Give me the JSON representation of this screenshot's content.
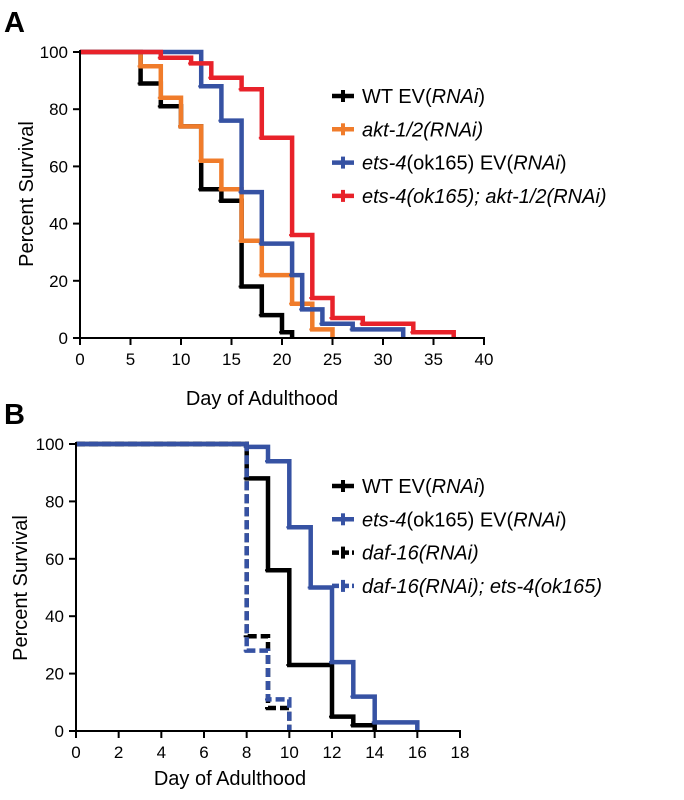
{
  "chart_data": [
    {
      "panel": "A",
      "type": "line",
      "step": true,
      "xlabel": "Day of Adulthood",
      "ylabel": "Percent Survival",
      "xlim": [
        0,
        40
      ],
      "ylim": [
        0,
        100
      ],
      "x_ticks": [
        "0",
        "5",
        "10",
        "15",
        "20",
        "25",
        "30",
        "35",
        "40"
      ],
      "y_ticks": [
        "0",
        "20",
        "40",
        "60",
        "80",
        "100"
      ],
      "grid": false,
      "legend_position": "right",
      "series": [
        {
          "legend_parts": [
            {
              "text": "WT EV(",
              "italic": false
            },
            {
              "text": "RNAi",
              "italic": true
            },
            {
              "text": ")",
              "italic": false
            }
          ],
          "color": "#000000",
          "dash": "solid",
          "points": [
            [
              0,
              100
            ],
            [
              6,
              100
            ],
            [
              6,
              89
            ],
            [
              8,
              89
            ],
            [
              8,
              81
            ],
            [
              10,
              81
            ],
            [
              10,
              74
            ],
            [
              12,
              74
            ],
            [
              12,
              52
            ],
            [
              14,
              52
            ],
            [
              14,
              48
            ],
            [
              16,
              48
            ],
            [
              16,
              18
            ],
            [
              18,
              18
            ],
            [
              18,
              8
            ],
            [
              20,
              8
            ],
            [
              20,
              2
            ],
            [
              21,
              2
            ],
            [
              21,
              0
            ]
          ]
        },
        {
          "legend_parts": [
            {
              "text": "akt-1/2(RNAi)",
              "italic": true
            }
          ],
          "color": "#f07c2b",
          "dash": "solid",
          "points": [
            [
              0,
              100
            ],
            [
              6,
              100
            ],
            [
              6,
              95
            ],
            [
              8,
              95
            ],
            [
              8,
              84
            ],
            [
              10,
              84
            ],
            [
              10,
              74
            ],
            [
              12,
              74
            ],
            [
              12,
              62
            ],
            [
              14,
              62
            ],
            [
              14,
              52
            ],
            [
              16,
              52
            ],
            [
              16,
              34
            ],
            [
              18,
              34
            ],
            [
              18,
              22
            ],
            [
              21,
              22
            ],
            [
              21,
              12
            ],
            [
              23,
              12
            ],
            [
              23,
              3
            ],
            [
              25,
              3
            ],
            [
              25,
              0
            ]
          ]
        },
        {
          "legend_parts": [
            {
              "text": "ets-4",
              "italic": true
            },
            {
              "text": "(ok165) EV(",
              "italic": false
            },
            {
              "text": "RNAi",
              "italic": true
            },
            {
              "text": ")",
              "italic": false
            }
          ],
          "color": "#3652a3",
          "dash": "solid",
          "points": [
            [
              0,
              100
            ],
            [
              10,
              100
            ],
            [
              12,
              100
            ],
            [
              12,
              88
            ],
            [
              14,
              88
            ],
            [
              14,
              76
            ],
            [
              16,
              76
            ],
            [
              16,
              51
            ],
            [
              18,
              51
            ],
            [
              18,
              33
            ],
            [
              21,
              33
            ],
            [
              21,
              22
            ],
            [
              22,
              22
            ],
            [
              22,
              10
            ],
            [
              24,
              10
            ],
            [
              24,
              5
            ],
            [
              27,
              5
            ],
            [
              27,
              3
            ],
            [
              32,
              3
            ],
            [
              32,
              0
            ]
          ]
        },
        {
          "legend_parts": [
            {
              "text": "ets-4(ok165); akt-1/2(RNAi)",
              "italic": true
            }
          ],
          "color": "#e8222a",
          "dash": "solid",
          "points": [
            [
              0,
              100
            ],
            [
              8,
              100
            ],
            [
              8,
              98
            ],
            [
              11,
              98
            ],
            [
              11,
              96
            ],
            [
              13,
              96
            ],
            [
              13,
              91
            ],
            [
              16,
              91
            ],
            [
              16,
              87
            ],
            [
              18,
              87
            ],
            [
              18,
              70
            ],
            [
              21,
              70
            ],
            [
              21,
              36
            ],
            [
              23,
              36
            ],
            [
              23,
              14
            ],
            [
              25,
              14
            ],
            [
              25,
              7
            ],
            [
              28,
              7
            ],
            [
              28,
              5
            ],
            [
              33,
              5
            ],
            [
              33,
              2
            ],
            [
              37,
              2
            ],
            [
              37,
              0
            ]
          ]
        }
      ]
    },
    {
      "panel": "B",
      "type": "line",
      "step": true,
      "xlabel": "Day of Adulthood",
      "ylabel": "Percent Survival",
      "xlim": [
        0,
        18
      ],
      "ylim": [
        0,
        100
      ],
      "x_ticks": [
        "0",
        "2",
        "4",
        "6",
        "8",
        "10",
        "12",
        "14",
        "16",
        "18"
      ],
      "y_ticks": [
        "0",
        "20",
        "40",
        "60",
        "80",
        "100"
      ],
      "grid": false,
      "legend_position": "right",
      "series": [
        {
          "legend_parts": [
            {
              "text": "WT EV(",
              "italic": false
            },
            {
              "text": "RNAi",
              "italic": true
            },
            {
              "text": ")",
              "italic": false
            }
          ],
          "color": "#000000",
          "dash": "solid",
          "points": [
            [
              0,
              100
            ],
            [
              8,
              100
            ],
            [
              8,
              88
            ],
            [
              9,
              88
            ],
            [
              9,
              56
            ],
            [
              10,
              56
            ],
            [
              10,
              23
            ],
            [
              12,
              23
            ],
            [
              12,
              5
            ],
            [
              13,
              5
            ],
            [
              13,
              2
            ],
            [
              14,
              2
            ],
            [
              14,
              0
            ]
          ]
        },
        {
          "legend_parts": [
            {
              "text": "ets-4",
              "italic": true
            },
            {
              "text": "(ok165) EV(",
              "italic": false
            },
            {
              "text": "RNAi",
              "italic": true
            },
            {
              "text": ")",
              "italic": false
            }
          ],
          "color": "#3652a3",
          "dash": "solid",
          "points": [
            [
              0,
              100
            ],
            [
              8,
              100
            ],
            [
              8,
              99
            ],
            [
              9,
              99
            ],
            [
              9,
              94
            ],
            [
              10,
              94
            ],
            [
              10,
              71
            ],
            [
              11,
              71
            ],
            [
              11,
              50
            ],
            [
              12,
              50
            ],
            [
              12,
              24
            ],
            [
              13,
              24
            ],
            [
              13,
              12
            ],
            [
              14,
              12
            ],
            [
              14,
              3
            ],
            [
              16,
              3
            ],
            [
              16,
              0
            ]
          ]
        },
        {
          "legend_parts": [
            {
              "text": "daf-16(RNAi)",
              "italic": true
            }
          ],
          "color": "#000000",
          "dash": "dashed",
          "points": [
            [
              0,
              100
            ],
            [
              8,
              100
            ],
            [
              8,
              33
            ],
            [
              9,
              33
            ],
            [
              9,
              8
            ],
            [
              10,
              8
            ],
            [
              10,
              0
            ]
          ]
        },
        {
          "legend_parts": [
            {
              "text": "daf-16(RNAi); ets-4(ok165)",
              "italic": true
            }
          ],
          "color": "#3652a3",
          "dash": "dashed",
          "points": [
            [
              0,
              100
            ],
            [
              8,
              100
            ],
            [
              8,
              28
            ],
            [
              9,
              28
            ],
            [
              9,
              11
            ],
            [
              10,
              11
            ],
            [
              10,
              0
            ]
          ]
        }
      ]
    }
  ]
}
